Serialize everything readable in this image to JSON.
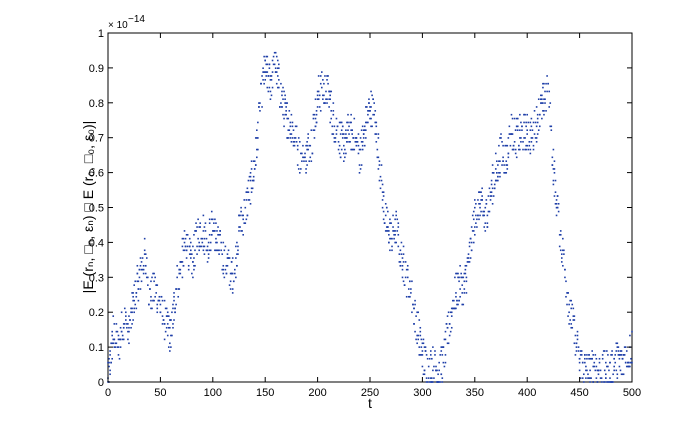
{
  "chart_data": {
    "type": "scatter",
    "title": "",
    "xlabel": "t",
    "ylabel": "|E (rₙ, □ₙ, εₙ) □ E (r₀, □₀, ε₀)|",
    "y_exponent_label": "× 10",
    "y_exponent_power": "−14",
    "xlim": [
      0,
      500
    ],
    "ylim": [
      0,
      1
    ],
    "x_ticks": [
      0,
      50,
      100,
      150,
      200,
      250,
      300,
      350,
      400,
      450,
      500
    ],
    "x_tick_labels": [
      "0",
      "50",
      "100",
      "150",
      "200",
      "250",
      "300",
      "350",
      "400",
      "450",
      "500"
    ],
    "y_ticks": [
      0,
      0.1,
      0.2,
      0.3,
      0.4,
      0.5,
      0.6,
      0.7,
      0.8,
      0.9,
      1
    ],
    "y_tick_labels": [
      "0",
      "0.1",
      "0.2",
      "0.3",
      "0.4",
      "0.5",
      "0.6",
      "0.7",
      "0.8",
      "0.9",
      "1"
    ],
    "grid": false,
    "legend": "none",
    "marker_color": "#1f3fa8",
    "trend": [
      [
        0,
        0.0
      ],
      [
        5,
        0.14
      ],
      [
        10,
        0.1
      ],
      [
        15,
        0.18
      ],
      [
        20,
        0.14
      ],
      [
        25,
        0.24
      ],
      [
        30,
        0.3
      ],
      [
        35,
        0.36
      ],
      [
        40,
        0.24
      ],
      [
        45,
        0.27
      ],
      [
        50,
        0.21
      ],
      [
        55,
        0.17
      ],
      [
        60,
        0.13
      ],
      [
        65,
        0.27
      ],
      [
        70,
        0.34
      ],
      [
        75,
        0.4
      ],
      [
        80,
        0.33
      ],
      [
        85,
        0.42
      ],
      [
        90,
        0.44
      ],
      [
        95,
        0.4
      ],
      [
        100,
        0.45
      ],
      [
        105,
        0.39
      ],
      [
        110,
        0.36
      ],
      [
        115,
        0.33
      ],
      [
        120,
        0.3
      ],
      [
        125,
        0.44
      ],
      [
        130,
        0.48
      ],
      [
        135,
        0.55
      ],
      [
        140,
        0.62
      ],
      [
        145,
        0.78
      ],
      [
        150,
        0.9
      ],
      [
        155,
        0.86
      ],
      [
        160,
        0.91
      ],
      [
        165,
        0.82
      ],
      [
        170,
        0.76
      ],
      [
        175,
        0.74
      ],
      [
        180,
        0.68
      ],
      [
        185,
        0.62
      ],
      [
        190,
        0.66
      ],
      [
        195,
        0.7
      ],
      [
        200,
        0.82
      ],
      [
        205,
        0.84
      ],
      [
        210,
        0.83
      ],
      [
        215,
        0.75
      ],
      [
        220,
        0.71
      ],
      [
        225,
        0.68
      ],
      [
        230,
        0.72
      ],
      [
        235,
        0.7
      ],
      [
        240,
        0.65
      ],
      [
        245,
        0.72
      ],
      [
        250,
        0.8
      ],
      [
        255,
        0.75
      ],
      [
        260,
        0.6
      ],
      [
        265,
        0.46
      ],
      [
        270,
        0.42
      ],
      [
        275,
        0.44
      ],
      [
        280,
        0.36
      ],
      [
        285,
        0.3
      ],
      [
        290,
        0.24
      ],
      [
        295,
        0.16
      ],
      [
        300,
        0.08
      ],
      [
        305,
        0.04
      ],
      [
        310,
        0.05
      ],
      [
        315,
        0.03
      ],
      [
        320,
        0.06
      ],
      [
        325,
        0.15
      ],
      [
        330,
        0.24
      ],
      [
        335,
        0.28
      ],
      [
        340,
        0.27
      ],
      [
        345,
        0.36
      ],
      [
        350,
        0.47
      ],
      [
        355,
        0.52
      ],
      [
        360,
        0.46
      ],
      [
        365,
        0.55
      ],
      [
        370,
        0.6
      ],
      [
        375,
        0.66
      ],
      [
        380,
        0.64
      ],
      [
        385,
        0.72
      ],
      [
        390,
        0.7
      ],
      [
        395,
        0.71
      ],
      [
        400,
        0.72
      ],
      [
        405,
        0.7
      ],
      [
        410,
        0.76
      ],
      [
        415,
        0.8
      ],
      [
        420,
        0.83
      ],
      [
        425,
        0.62
      ],
      [
        430,
        0.46
      ],
      [
        435,
        0.34
      ],
      [
        440,
        0.22
      ],
      [
        445,
        0.14
      ],
      [
        450,
        0.06
      ],
      [
        455,
        0.04
      ],
      [
        460,
        0.03
      ],
      [
        465,
        0.05
      ],
      [
        470,
        0.02
      ],
      [
        475,
        0.04
      ],
      [
        480,
        0.03
      ],
      [
        485,
        0.07
      ],
      [
        490,
        0.05
      ],
      [
        495,
        0.08
      ],
      [
        500,
        0.1
      ]
    ]
  }
}
